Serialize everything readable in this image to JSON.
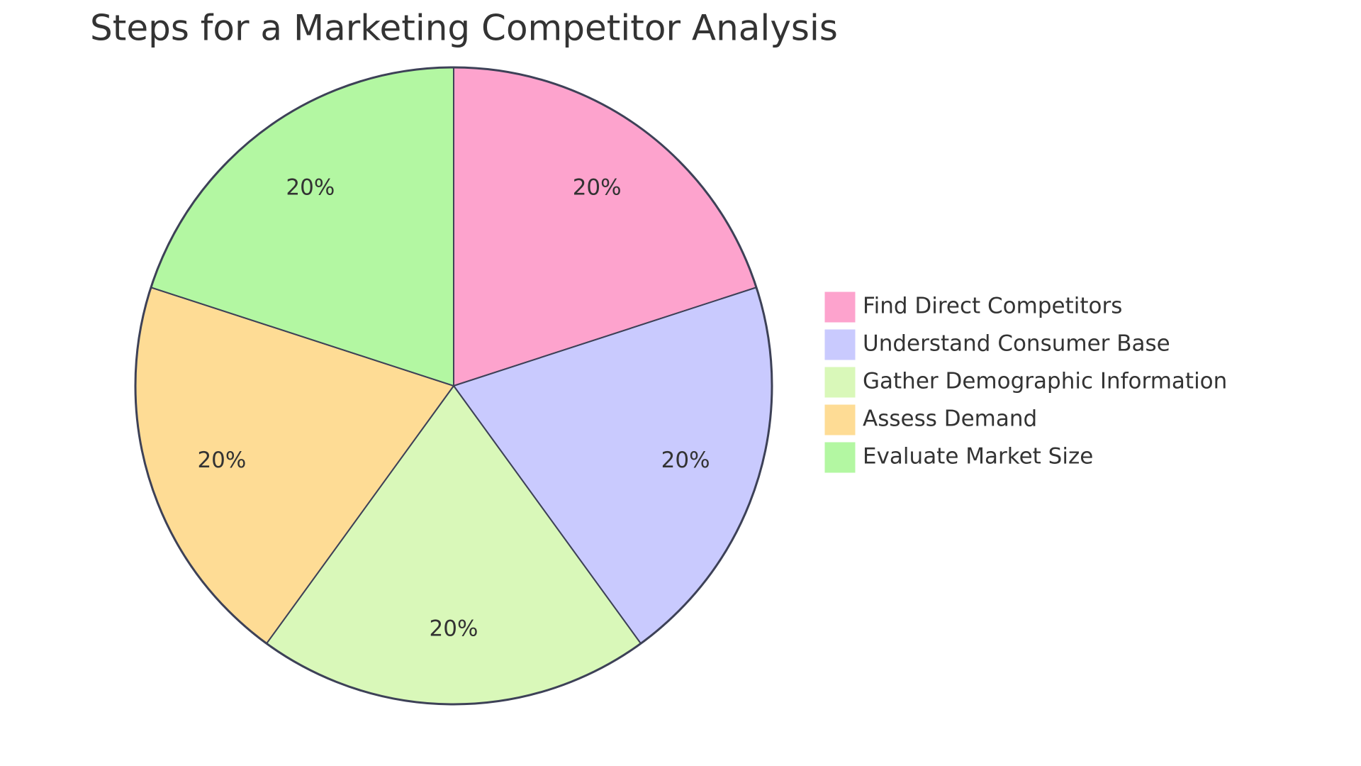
{
  "chart_data": {
    "type": "pie",
    "title": "Steps for a Marketing Competitor Analysis",
    "categories": [
      "Find Direct Competitors",
      "Understand Consumer Base",
      "Gather Demographic Information",
      "Assess Demand",
      "Evaluate Market Size"
    ],
    "values": [
      20,
      20,
      20,
      20,
      20
    ],
    "value_labels": [
      "20%",
      "20%",
      "20%",
      "20%",
      "20%"
    ],
    "colors": [
      "#fda3cd",
      "#c9cafe",
      "#d9f8b9",
      "#fedc95",
      "#b3f7a2"
    ],
    "legend": "right"
  }
}
